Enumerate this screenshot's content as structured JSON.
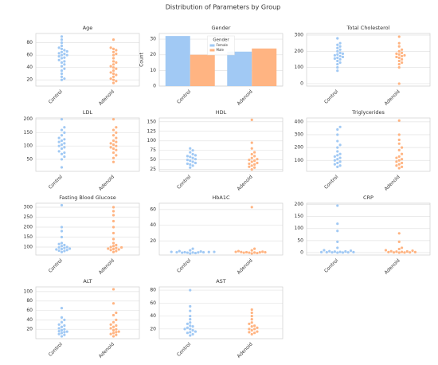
{
  "title": "Distribution of Parameters by Group",
  "chart_data": [
    {
      "type": "swarm",
      "title": "Age",
      "categories": [
        "Control",
        "Adenoid"
      ],
      "colors": [
        "#a1c9f4",
        "#ffb482"
      ],
      "grid": true,
      "ylim": [
        10,
        95
      ],
      "yticks": [
        20,
        40,
        60,
        80
      ],
      "values": [
        [
          20,
          22,
          25,
          30,
          35,
          38,
          42,
          45,
          48,
          50,
          52,
          55,
          56,
          58,
          60,
          60,
          62,
          63,
          65,
          66,
          68,
          70,
          72,
          75,
          80,
          85,
          90
        ],
        [
          15,
          18,
          20,
          22,
          25,
          28,
          30,
          32,
          35,
          38,
          40,
          42,
          45,
          48,
          50,
          55,
          60,
          62,
          65,
          68,
          70,
          72,
          85
        ]
      ]
    },
    {
      "type": "bar",
      "title": "Gender",
      "categories": [
        "Control",
        "Adenoid"
      ],
      "ylabel": "Count",
      "legend_title": "Gender",
      "legend": "upper center",
      "grid": true,
      "ylim": [
        0,
        33.6
      ],
      "yticks": [
        0,
        10,
        20,
        30
      ],
      "series": [
        {
          "name": "Female",
          "color": "#a1c9f4",
          "values": [
            32,
            22
          ]
        },
        {
          "name": "Male",
          "color": "#ffb482",
          "values": [
            20,
            24
          ]
        }
      ]
    },
    {
      "type": "swarm",
      "title": "Total Cholesterol",
      "categories": [
        "Control",
        "Adenoid"
      ],
      "colors": [
        "#a1c9f4",
        "#ffb482"
      ],
      "grid": true,
      "ylim": [
        -15,
        310
      ],
      "yticks": [
        0,
        100,
        200,
        300
      ],
      "values": [
        [
          80,
          100,
          120,
          130,
          140,
          150,
          155,
          160,
          165,
          170,
          175,
          180,
          185,
          190,
          200,
          210,
          220,
          230,
          240,
          250,
          280
        ],
        [
          0,
          100,
          120,
          130,
          140,
          150,
          160,
          165,
          170,
          175,
          180,
          185,
          190,
          200,
          210,
          230,
          250,
          290
        ]
      ]
    },
    {
      "type": "swarm",
      "title": "LDL",
      "categories": [
        "Control",
        "Adenoid"
      ],
      "colors": [
        "#a1c9f4",
        "#ffb482"
      ],
      "grid": true,
      "ylim": [
        5,
        205
      ],
      "yticks": [
        50,
        100,
        150,
        200
      ],
      "values": [
        [
          20,
          50,
          60,
          70,
          75,
          80,
          90,
          95,
          100,
          105,
          110,
          115,
          120,
          125,
          130,
          140,
          150,
          160,
          170,
          200
        ],
        [
          40,
          55,
          65,
          75,
          85,
          90,
          95,
          100,
          105,
          110,
          115,
          120,
          130,
          140,
          150,
          160,
          170,
          200
        ]
      ]
    },
    {
      "type": "swarm",
      "title": "HDL",
      "categories": [
        "Control",
        "Adenoid"
      ],
      "colors": [
        "#a1c9f4",
        "#ffb482"
      ],
      "grid": true,
      "ylim": [
        20,
        160
      ],
      "yticks": [
        25,
        50,
        75,
        100,
        125,
        150
      ],
      "values": [
        [
          30,
          35,
          38,
          40,
          42,
          45,
          48,
          50,
          52,
          55,
          58,
          60,
          62,
          65,
          70,
          75,
          80
        ],
        [
          25,
          30,
          32,
          35,
          38,
          40,
          42,
          45,
          48,
          50,
          52,
          55,
          60,
          65,
          70,
          80,
          95,
          155
        ]
      ]
    },
    {
      "type": "swarm",
      "title": "Triglycerides",
      "categories": [
        "Control",
        "Adenoid"
      ],
      "colors": [
        "#a1c9f4",
        "#ffb482"
      ],
      "grid": true,
      "ylim": [
        15,
        430
      ],
      "yticks": [
        100,
        200,
        300,
        400
      ],
      "values": [
        [
          50,
          60,
          70,
          80,
          90,
          100,
          110,
          120,
          130,
          140,
          150,
          170,
          200,
          220,
          250,
          300,
          340,
          360
        ],
        [
          40,
          50,
          60,
          70,
          80,
          90,
          100,
          110,
          120,
          130,
          150,
          180,
          200,
          230,
          260,
          300,
          410
        ]
      ]
    },
    {
      "type": "swarm",
      "title": "Fasting Blood Glucose",
      "categories": [
        "Control",
        "Adenoid"
      ],
      "colors": [
        "#a1c9f4",
        "#ffb482"
      ],
      "grid": true,
      "ylim": [
        60,
        320
      ],
      "yticks": [
        100,
        150,
        200,
        250,
        300
      ],
      "values": [
        [
          75,
          80,
          82,
          85,
          88,
          90,
          92,
          95,
          98,
          100,
          105,
          110,
          115,
          120,
          150,
          180,
          200,
          310
        ],
        [
          75,
          80,
          85,
          88,
          90,
          92,
          95,
          98,
          100,
          105,
          110,
          120,
          140,
          170,
          200,
          230,
          260,
          280,
          300
        ]
      ]
    },
    {
      "type": "swarm",
      "title": "HbA1C",
      "categories": [
        "Control",
        "Adenoid"
      ],
      "colors": [
        "#a1c9f4",
        "#ffb482"
      ],
      "grid": true,
      "ylim": [
        2,
        68
      ],
      "yticks": [
        20,
        40,
        60
      ],
      "values": [
        [
          4,
          4.5,
          5,
          5,
          5.2,
          5.3,
          5.5,
          5.5,
          5.6,
          5.8,
          6,
          6,
          6.5,
          7,
          8,
          10
        ],
        [
          4,
          4.5,
          5,
          5,
          5.2,
          5.4,
          5.5,
          5.6,
          5.8,
          6,
          6.2,
          7,
          8,
          10,
          63
        ]
      ]
    },
    {
      "type": "swarm",
      "title": "CRP",
      "categories": [
        "Control",
        "Adenoid"
      ],
      "colors": [
        "#a1c9f4",
        "#ffb482"
      ],
      "grid": true,
      "ylim": [
        -10,
        205
      ],
      "yticks": [
        0,
        50,
        100,
        150,
        200
      ],
      "values": [
        [
          0,
          0.5,
          1,
          1,
          1.5,
          2,
          2,
          3,
          4,
          5,
          6,
          8,
          10,
          20,
          45,
          90,
          120,
          195
        ],
        [
          0,
          0.5,
          1,
          1,
          2,
          2,
          3,
          4,
          5,
          6,
          8,
          10,
          15,
          20,
          45,
          80
        ]
      ]
    },
    {
      "type": "swarm",
      "title": "ALT",
      "categories": [
        "Control",
        "Adenoid"
      ],
      "colors": [
        "#a1c9f4",
        "#ffb482"
      ],
      "grid": true,
      "ylim": [
        0,
        110
      ],
      "yticks": [
        20,
        40,
        60,
        80,
        100
      ],
      "values": [
        [
          5,
          8,
          10,
          12,
          14,
          15,
          16,
          18,
          20,
          22,
          25,
          28,
          30,
          35,
          40,
          45,
          65
        ],
        [
          5,
          8,
          10,
          12,
          14,
          15,
          18,
          20,
          22,
          25,
          28,
          30,
          35,
          40,
          50,
          55,
          75,
          105
        ]
      ]
    },
    {
      "type": "swarm",
      "title": "AST",
      "categories": [
        "Control",
        "Adenoid"
      ],
      "colors": [
        "#a1c9f4",
        "#ffb482"
      ],
      "grid": true,
      "ylim": [
        5,
        85
      ],
      "yticks": [
        20,
        40,
        60,
        80
      ],
      "values": [
        [
          10,
          12,
          14,
          15,
          16,
          18,
          20,
          20,
          22,
          24,
          25,
          28,
          30,
          35,
          40,
          48,
          55,
          80
        ],
        [
          12,
          14,
          15,
          16,
          18,
          20,
          20,
          22,
          24,
          25,
          28,
          30,
          35,
          40,
          45,
          50
        ]
      ]
    }
  ]
}
